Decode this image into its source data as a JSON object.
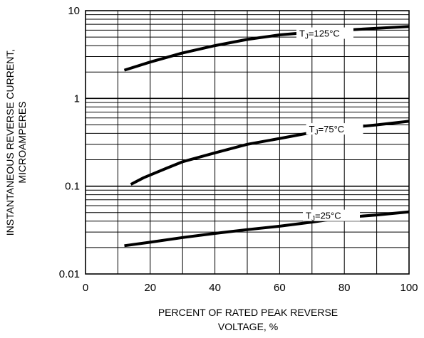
{
  "chart_data": {
    "type": "line",
    "title": "",
    "xlabel_lines": [
      "PERCENT OF RATED PEAK REVERSE",
      "VOLTAGE, %"
    ],
    "ylabel_lines": [
      "INSTANTANEOUS REVERSE CURRENT,",
      "MICROAMPERES"
    ],
    "xlim": [
      0,
      100
    ],
    "ylim": [
      0.01,
      10
    ],
    "yscale": "log",
    "grid": true,
    "x_ticks": [
      "0",
      "20",
      "40",
      "60",
      "80",
      "100"
    ],
    "y_ticks": [
      "0.01",
      "0.1",
      "1",
      "10"
    ],
    "series": [
      {
        "label_prefix": "T",
        "label_sub": "J",
        "label_suffix": "=125°C",
        "x": [
          12,
          20,
          30,
          40,
          50,
          60,
          70,
          80,
          90,
          100
        ],
        "y": [
          2.1,
          2.6,
          3.3,
          4.0,
          4.7,
          5.3,
          5.7,
          6.0,
          6.3,
          6.6
        ]
      },
      {
        "label_prefix": "T",
        "label_sub": "J",
        "label_suffix": "=75°C",
        "x": [
          14,
          18,
          25,
          30,
          40,
          50,
          60,
          70,
          75,
          80,
          90,
          100
        ],
        "y": [
          0.105,
          0.125,
          0.16,
          0.19,
          0.24,
          0.3,
          0.35,
          0.41,
          0.44,
          0.46,
          0.5,
          0.55
        ]
      },
      {
        "label_prefix": "T",
        "label_sub": "J",
        "label_suffix": "=25°C",
        "x": [
          12,
          20,
          30,
          40,
          50,
          60,
          70,
          80,
          90,
          100
        ],
        "y": [
          0.021,
          0.023,
          0.026,
          0.029,
          0.032,
          0.035,
          0.039,
          0.044,
          0.047,
          0.051
        ]
      }
    ]
  }
}
